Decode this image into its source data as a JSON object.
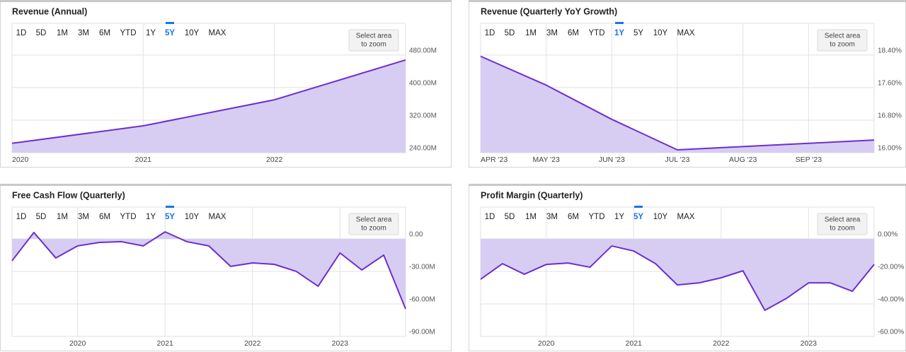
{
  "chart_data": [
    {
      "type": "area",
      "title": "Revenue (Annual)",
      "range_buttons": [
        "1D",
        "5D",
        "1M",
        "3M",
        "6M",
        "YTD",
        "1Y",
        "5Y",
        "10Y",
        "MAX"
      ],
      "active_range": "5Y",
      "zoom_label": [
        "Select area",
        "to zoom"
      ],
      "categories": [
        "2020",
        "2021",
        "2022",
        null
      ],
      "values": [
        263,
        306,
        370,
        468
      ],
      "color": "#6a2fd2",
      "fill_color": "#d7cdf2",
      "grid": true,
      "ylim": [
        240,
        558
      ],
      "yticks": [
        {
          "value": 240,
          "label": "240.00M"
        },
        {
          "value": 320,
          "label": "320.00M"
        },
        {
          "value": 400,
          "label": "400.00M"
        },
        {
          "value": 480,
          "label": "480.00M"
        }
      ]
    },
    {
      "type": "area",
      "title": "Revenue (Quarterly YoY Growth)",
      "range_buttons": [
        "1D",
        "5D",
        "1M",
        "3M",
        "6M",
        "YTD",
        "1Y",
        "5Y",
        "10Y",
        "MAX"
      ],
      "active_range": "1Y",
      "zoom_label": [
        "Select area",
        "to zoom"
      ],
      "categories": [
        "APR '23",
        "MAY '23",
        "JUN '23",
        "JUL '23",
        "AUG '23",
        "SEP '23",
        null
      ],
      "values": [
        18.37,
        17.66,
        16.82,
        16.07,
        16.15,
        16.23,
        16.31
      ],
      "color": "#6a2fd2",
      "fill_color": "#d7cdf2",
      "grid": true,
      "ylim": [
        16,
        19.18
      ],
      "yticks": [
        {
          "value": 16,
          "label": "16.00%"
        },
        {
          "value": 16.8,
          "label": "16.80%"
        },
        {
          "value": 17.6,
          "label": "17.60%"
        },
        {
          "value": 18.4,
          "label": "18.40%"
        }
      ]
    },
    {
      "type": "area",
      "title": "Free Cash Flow (Quarterly)",
      "range_buttons": [
        "1D",
        "5D",
        "1M",
        "3M",
        "6M",
        "YTD",
        "1Y",
        "5Y",
        "10Y",
        "MAX"
      ],
      "active_range": "5Y",
      "zoom_label": [
        "Select area",
        "to zoom"
      ],
      "categories": [
        null,
        null,
        null,
        "2020",
        null,
        null,
        null,
        "2021",
        null,
        null,
        null,
        "2022",
        null,
        null,
        null,
        "2023",
        null,
        null,
        null
      ],
      "values": [
        -20.2,
        5.9,
        -17.6,
        -6.5,
        -3.3,
        -2.6,
        -6.5,
        6.5,
        -2.6,
        -6.5,
        -25.4,
        -22.2,
        -23.5,
        -30.0,
        -43.7,
        -13.0,
        -28.7,
        -15.0,
        -64.6
      ],
      "color": "#6a2fd2",
      "fill_color": "#d7cdf2",
      "grid": true,
      "ylim": [
        -90,
        29.3
      ],
      "yticks": [
        {
          "value": -90,
          "label": "-90.00M"
        },
        {
          "value": -60,
          "label": "-60.00M"
        },
        {
          "value": -30,
          "label": "-30.00M"
        },
        {
          "value": 0,
          "label": "0.00"
        }
      ]
    },
    {
      "type": "area",
      "title": "Profit Margin (Quarterly)",
      "range_buttons": [
        "1D",
        "5D",
        "1M",
        "3M",
        "6M",
        "YTD",
        "1Y",
        "5Y",
        "10Y",
        "MAX"
      ],
      "active_range": "5Y",
      "zoom_label": [
        "Select area",
        "to zoom"
      ],
      "categories": [
        null,
        null,
        null,
        "2020",
        null,
        null,
        null,
        "2021",
        null,
        null,
        null,
        "2022",
        null,
        null,
        null,
        "2023",
        null,
        null,
        null
      ],
      "values": [
        -24.8,
        -15.2,
        -21.7,
        -15.7,
        -14.8,
        -17.4,
        -4.3,
        -7.4,
        -15.2,
        -28.3,
        -27.0,
        -23.9,
        -19.6,
        -43.9,
        -36.5,
        -27.0,
        -27.0,
        -32.2,
        -15.7
      ],
      "color": "#6a2fd2",
      "fill_color": "#d7cdf2",
      "grid": true,
      "ylim": [
        -60,
        19.6
      ],
      "yticks": [
        {
          "value": -60,
          "label": "-60.00%"
        },
        {
          "value": -40,
          "label": "-40.00%"
        },
        {
          "value": -20,
          "label": "-20.00%"
        },
        {
          "value": 0,
          "label": "0.00%"
        }
      ]
    }
  ]
}
